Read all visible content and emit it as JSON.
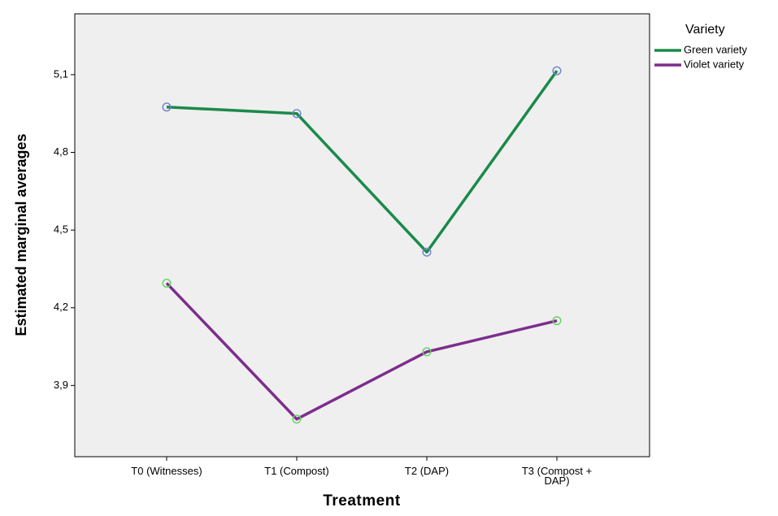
{
  "chart_data": {
    "type": "line",
    "title": "",
    "xlabel": "Treatment",
    "ylabel": "Estimated marginal averages",
    "categories": [
      [
        "T0 (Witnesses)"
      ],
      [
        "T1 (Compost)"
      ],
      [
        "T2 (DAP)"
      ],
      [
        "T3 (Compost +",
        "DAP)"
      ]
    ],
    "yticks": [
      "3,9",
      "4,2",
      "4,5",
      "4,8",
      "5,1"
    ],
    "ytick_values": [
      3.9,
      4.2,
      4.5,
      4.8,
      5.1
    ],
    "ylim": [
      3.625,
      5.335
    ],
    "grid": false,
    "legend": {
      "title": "Variety",
      "placement": "right"
    },
    "series": [
      {
        "name": "Green variety",
        "values": [
          4.975,
          4.95,
          4.415,
          5.115
        ],
        "line_color": "#1a8a4a",
        "marker_color": "#6f7fcf"
      },
      {
        "name": "Violet variety",
        "values": [
          4.295,
          3.77,
          4.03,
          4.15
        ],
        "line_color": "#7d2d8c",
        "marker_color": "#5fd35f"
      }
    ],
    "plot_background": "#efefef"
  }
}
